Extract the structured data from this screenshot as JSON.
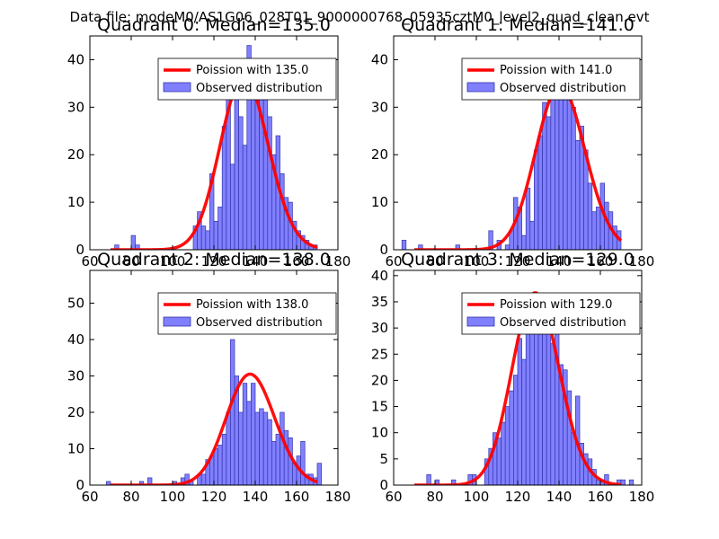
{
  "suptitle": "Data file: modeM0/AS1G06_028T01_9000000768_05935cztM0_level2_quad_clean.evt",
  "colors": {
    "bar_fill": "#8080ff",
    "bar_edge": "#3333aa",
    "curve": "#ff0000",
    "axes": "#000000"
  },
  "chart_data": [
    {
      "type": "bar",
      "title": "Quadrant 0: Median=135.0",
      "median": 135.0,
      "xlim": [
        60,
        180
      ],
      "ylim": [
        0,
        45
      ],
      "xticks": [
        60,
        80,
        100,
        120,
        140,
        160,
        180
      ],
      "yticks": [
        0,
        10,
        20,
        30,
        40
      ],
      "bin_width": 2,
      "bins": [
        [
          72,
          1
        ],
        [
          80,
          3
        ],
        [
          82,
          1
        ],
        [
          110,
          5
        ],
        [
          112,
          8
        ],
        [
          114,
          5
        ],
        [
          116,
          4
        ],
        [
          118,
          16
        ],
        [
          120,
          6
        ],
        [
          122,
          9
        ],
        [
          124,
          26
        ],
        [
          126,
          33
        ],
        [
          128,
          18
        ],
        [
          130,
          36
        ],
        [
          132,
          28
        ],
        [
          134,
          22
        ],
        [
          136,
          43
        ],
        [
          138,
          36
        ],
        [
          140,
          34
        ],
        [
          142,
          37
        ],
        [
          144,
          33
        ],
        [
          146,
          28
        ],
        [
          148,
          20
        ],
        [
          150,
          24
        ],
        [
          152,
          16
        ],
        [
          154,
          11
        ],
        [
          156,
          10
        ],
        [
          158,
          6
        ],
        [
          160,
          4
        ],
        [
          162,
          3
        ],
        [
          164,
          2
        ],
        [
          166,
          1
        ],
        [
          168,
          1
        ]
      ],
      "legend": [
        "Poission with 135.0",
        "Observed distribution"
      ]
    },
    {
      "type": "bar",
      "title": "Quadrant 1: Median=141.0",
      "median": 141.0,
      "xlim": [
        60,
        180
      ],
      "ylim": [
        0,
        45
      ],
      "xticks": [
        60,
        80,
        100,
        120,
        140,
        160,
        180
      ],
      "yticks": [
        0,
        10,
        20,
        30,
        40
      ],
      "bin_width": 2,
      "bins": [
        [
          64,
          2
        ],
        [
          72,
          1
        ],
        [
          90,
          1
        ],
        [
          106,
          4
        ],
        [
          110,
          2
        ],
        [
          114,
          1
        ],
        [
          116,
          4
        ],
        [
          118,
          11
        ],
        [
          120,
          9
        ],
        [
          122,
          3
        ],
        [
          124,
          13
        ],
        [
          126,
          6
        ],
        [
          128,
          21
        ],
        [
          130,
          24
        ],
        [
          132,
          31
        ],
        [
          134,
          28
        ],
        [
          136,
          34
        ],
        [
          138,
          37
        ],
        [
          140,
          34
        ],
        [
          142,
          40
        ],
        [
          144,
          36
        ],
        [
          146,
          30
        ],
        [
          148,
          23
        ],
        [
          150,
          26
        ],
        [
          152,
          21
        ],
        [
          154,
          14
        ],
        [
          156,
          8
        ],
        [
          158,
          9
        ],
        [
          160,
          14
        ],
        [
          162,
          10
        ],
        [
          164,
          8
        ],
        [
          166,
          5
        ],
        [
          168,
          4
        ]
      ],
      "legend": [
        "Poission with 141.0",
        "Observed distribution"
      ]
    },
    {
      "type": "bar",
      "title": "Quadrant 2: Median=138.0",
      "median": 138.0,
      "xlim": [
        60,
        180
      ],
      "ylim": [
        0,
        59
      ],
      "xticks": [
        60,
        80,
        100,
        120,
        140,
        160,
        180
      ],
      "yticks": [
        0,
        10,
        20,
        30,
        40,
        50
      ],
      "bin_width": 2,
      "bins": [
        [
          68,
          1
        ],
        [
          84,
          1
        ],
        [
          88,
          2
        ],
        [
          100,
          1
        ],
        [
          104,
          2
        ],
        [
          106,
          3
        ],
        [
          108,
          1
        ],
        [
          112,
          3
        ],
        [
          114,
          3
        ],
        [
          116,
          7
        ],
        [
          118,
          8
        ],
        [
          120,
          10
        ],
        [
          122,
          11
        ],
        [
          124,
          14
        ],
        [
          126,
          20
        ],
        [
          128,
          40
        ],
        [
          130,
          30
        ],
        [
          132,
          20
        ],
        [
          134,
          28
        ],
        [
          136,
          23
        ],
        [
          138,
          28
        ],
        [
          140,
          20
        ],
        [
          142,
          21
        ],
        [
          144,
          20
        ],
        [
          146,
          18
        ],
        [
          148,
          12
        ],
        [
          150,
          14
        ],
        [
          152,
          20
        ],
        [
          154,
          15
        ],
        [
          156,
          13
        ],
        [
          158,
          6
        ],
        [
          160,
          8
        ],
        [
          162,
          12
        ],
        [
          164,
          3
        ],
        [
          166,
          3
        ],
        [
          168,
          2
        ],
        [
          170,
          6
        ]
      ],
      "legend": [
        "Poission with 138.0",
        "Observed distribution"
      ]
    },
    {
      "type": "bar",
      "title": "Quadrant 3: Median=129.0",
      "median": 129.0,
      "xlim": [
        60,
        180
      ],
      "ylim": [
        0,
        41
      ],
      "xticks": [
        60,
        80,
        100,
        120,
        140,
        160,
        180
      ],
      "yticks": [
        0,
        5,
        10,
        15,
        20,
        25,
        30,
        35,
        40
      ],
      "bin_width": 2,
      "bins": [
        [
          76,
          2
        ],
        [
          80,
          1
        ],
        [
          88,
          1
        ],
        [
          96,
          2
        ],
        [
          98,
          2
        ],
        [
          104,
          5
        ],
        [
          106,
          7
        ],
        [
          108,
          10
        ],
        [
          110,
          9
        ],
        [
          112,
          12
        ],
        [
          114,
          15
        ],
        [
          116,
          18
        ],
        [
          118,
          21
        ],
        [
          120,
          28
        ],
        [
          122,
          24
        ],
        [
          124,
          33
        ],
        [
          126,
          30
        ],
        [
          128,
          35
        ],
        [
          130,
          31
        ],
        [
          132,
          30
        ],
        [
          134,
          31
        ],
        [
          136,
          27
        ],
        [
          138,
          30
        ],
        [
          140,
          23
        ],
        [
          142,
          22
        ],
        [
          144,
          18
        ],
        [
          146,
          10
        ],
        [
          148,
          17
        ],
        [
          150,
          8
        ],
        [
          152,
          6
        ],
        [
          154,
          5
        ],
        [
          156,
          3
        ],
        [
          158,
          1
        ],
        [
          160,
          1
        ],
        [
          162,
          2
        ],
        [
          168,
          1
        ],
        [
          170,
          1
        ],
        [
          174,
          1
        ]
      ],
      "legend": [
        "Poission with 129.0",
        "Observed distribution"
      ]
    }
  ]
}
